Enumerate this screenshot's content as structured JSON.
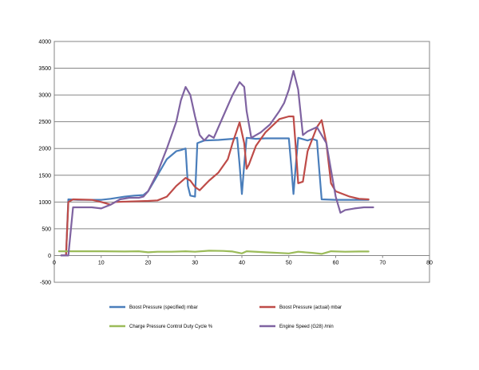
{
  "chart_data": {
    "type": "line",
    "title": "",
    "xlabel": "",
    "ylabel": "",
    "xlim": [
      0,
      80
    ],
    "ylim": [
      -500,
      4000
    ],
    "xticks": [
      "0",
      "10",
      "20",
      "30",
      "40",
      "50",
      "60",
      "70",
      "80"
    ],
    "yticks": [
      "-500",
      "0",
      "500",
      "1000",
      "1500",
      "2000",
      "2500",
      "3000",
      "3500",
      "4000"
    ],
    "grid": "horizontal",
    "legend_position": "bottom",
    "series": [
      {
        "name": "Boost Pressure (specified)  mbar",
        "color": "#4a7ebb",
        "points": [
          [
            1.5,
            0
          ],
          [
            2.5,
            0
          ],
          [
            3,
            1050
          ],
          [
            5,
            1040
          ],
          [
            10,
            1040
          ],
          [
            12,
            1060
          ],
          [
            15,
            1100
          ],
          [
            17,
            1120
          ],
          [
            19,
            1130
          ],
          [
            20,
            1200
          ],
          [
            22,
            1500
          ],
          [
            24,
            1800
          ],
          [
            26,
            1950
          ],
          [
            27,
            1970
          ],
          [
            28,
            2000
          ],
          [
            28.5,
            1300
          ],
          [
            29,
            1120
          ],
          [
            30,
            1100
          ],
          [
            30.5,
            2100
          ],
          [
            32,
            2150
          ],
          [
            35,
            2160
          ],
          [
            38,
            2180
          ],
          [
            39,
            2200
          ],
          [
            39.5,
            1700
          ],
          [
            40,
            1150
          ],
          [
            40.5,
            1700
          ],
          [
            41,
            2200
          ],
          [
            43,
            2180
          ],
          [
            45,
            2190
          ],
          [
            48,
            2190
          ],
          [
            50,
            2190
          ],
          [
            50.5,
            1700
          ],
          [
            51,
            1150
          ],
          [
            51.5,
            1700
          ],
          [
            52,
            2200
          ],
          [
            54,
            2150
          ],
          [
            55,
            2180
          ],
          [
            56,
            2150
          ],
          [
            56.5,
            1600
          ],
          [
            57,
            1050
          ],
          [
            60,
            1040
          ],
          [
            65,
            1040
          ],
          [
            67,
            1040
          ]
        ]
      },
      {
        "name": "Boost Pressure (actual)  mbar",
        "color": "#be4b48",
        "points": [
          [
            1.5,
            0
          ],
          [
            2.5,
            0
          ],
          [
            3,
            1000
          ],
          [
            4,
            1050
          ],
          [
            8,
            1040
          ],
          [
            10,
            1000
          ],
          [
            12,
            950
          ],
          [
            13,
            1000
          ],
          [
            16,
            1010
          ],
          [
            20,
            1020
          ],
          [
            22,
            1030
          ],
          [
            24,
            1100
          ],
          [
            26,
            1300
          ],
          [
            28,
            1450
          ],
          [
            29,
            1400
          ],
          [
            30,
            1280
          ],
          [
            31,
            1220
          ],
          [
            33,
            1400
          ],
          [
            35,
            1550
          ],
          [
            37,
            1800
          ],
          [
            38,
            2100
          ],
          [
            39.5,
            2490
          ],
          [
            40.5,
            2100
          ],
          [
            41,
            1620
          ],
          [
            41.5,
            1700
          ],
          [
            43,
            2050
          ],
          [
            45,
            2300
          ],
          [
            48,
            2550
          ],
          [
            50,
            2600
          ],
          [
            51,
            2600
          ],
          [
            51.5,
            2000
          ],
          [
            52,
            1350
          ],
          [
            53,
            1380
          ],
          [
            54,
            1950
          ],
          [
            56,
            2400
          ],
          [
            57,
            2530
          ],
          [
            58,
            2100
          ],
          [
            59,
            1350
          ],
          [
            60,
            1200
          ],
          [
            63,
            1100
          ],
          [
            65,
            1060
          ],
          [
            67,
            1050
          ]
        ]
      },
      {
        "name": "Charge Pressure Control Duty Cycle  %",
        "color": "#9bbb59",
        "points": [
          [
            1,
            80
          ],
          [
            5,
            80
          ],
          [
            10,
            80
          ],
          [
            15,
            75
          ],
          [
            18,
            80
          ],
          [
            20,
            60
          ],
          [
            22,
            70
          ],
          [
            25,
            70
          ],
          [
            28,
            80
          ],
          [
            30,
            70
          ],
          [
            33,
            90
          ],
          [
            36,
            85
          ],
          [
            38,
            75
          ],
          [
            40,
            40
          ],
          [
            41,
            80
          ],
          [
            45,
            60
          ],
          [
            50,
            40
          ],
          [
            52,
            70
          ],
          [
            55,
            50
          ],
          [
            57,
            30
          ],
          [
            59,
            80
          ],
          [
            62,
            70
          ],
          [
            65,
            75
          ],
          [
            67,
            75
          ]
        ]
      },
      {
        "name": "Engine Speed (G28)  /min",
        "color": "#7f63a1",
        "points": [
          [
            1.5,
            0
          ],
          [
            3,
            0
          ],
          [
            4,
            900
          ],
          [
            8,
            900
          ],
          [
            10,
            880
          ],
          [
            12,
            950
          ],
          [
            14,
            1050
          ],
          [
            16,
            1080
          ],
          [
            18,
            1080
          ],
          [
            19,
            1100
          ],
          [
            20,
            1200
          ],
          [
            22,
            1550
          ],
          [
            24,
            2000
          ],
          [
            26,
            2500
          ],
          [
            27,
            2900
          ],
          [
            28,
            3150
          ],
          [
            29,
            3000
          ],
          [
            30,
            2600
          ],
          [
            31,
            2250
          ],
          [
            32,
            2150
          ],
          [
            33,
            2250
          ],
          [
            34,
            2200
          ],
          [
            36,
            2600
          ],
          [
            38,
            3000
          ],
          [
            39.5,
            3240
          ],
          [
            40.5,
            3150
          ],
          [
            41,
            2700
          ],
          [
            42,
            2200
          ],
          [
            44,
            2300
          ],
          [
            46,
            2450
          ],
          [
            48,
            2700
          ],
          [
            49,
            2850
          ],
          [
            50,
            3100
          ],
          [
            51,
            3450
          ],
          [
            52,
            3100
          ],
          [
            53,
            2250
          ],
          [
            54,
            2320
          ],
          [
            56,
            2400
          ],
          [
            58,
            2100
          ],
          [
            59,
            1600
          ],
          [
            60,
            1100
          ],
          [
            61,
            800
          ],
          [
            62,
            850
          ],
          [
            64,
            880
          ],
          [
            66,
            900
          ],
          [
            68,
            900
          ]
        ]
      }
    ]
  }
}
